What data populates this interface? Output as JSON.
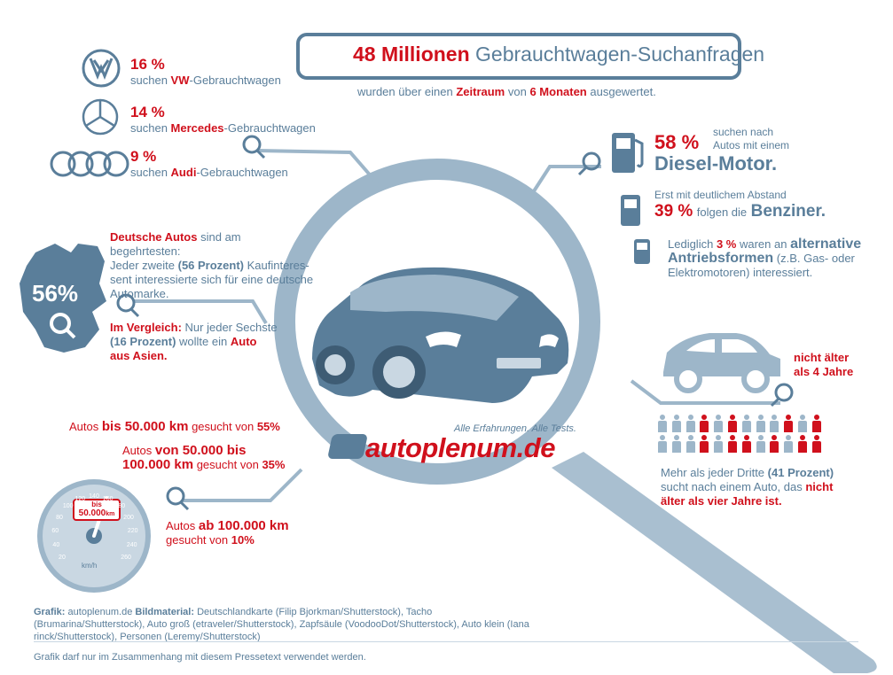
{
  "header": {
    "title_number": "48 Millionen",
    "title_rest": "Gebrauchtwagen-Suchanfragen",
    "subtitle_pre": "wurden über einen",
    "subtitle_b1": "Zeitraum",
    "subtitle_mid": "von",
    "subtitle_b2": "6 Monaten",
    "subtitle_post": "ausgewertet."
  },
  "brands": [
    {
      "percent": "16 %",
      "pre": "suchen",
      "name": "VW",
      "post": "-Gebrauchtwagen",
      "logo": "vw-logo"
    },
    {
      "percent": "14 %",
      "pre": "suchen",
      "name": "Mercedes",
      "post": "-Gebrauchtwagen",
      "logo": "mercedes-logo"
    },
    {
      "percent": "9 %",
      "pre": "suchen",
      "name": "Audi",
      "post": "-Gebrauchtwagen",
      "logo": "audi-logo"
    }
  ],
  "germany": {
    "percent": "56%",
    "p1_red": "Deutsche Autos",
    "p1_rest": "sind am begehrtesten:",
    "p1_line2_pre": "Jeder zweite",
    "p1_line2_bold": "(56 Prozent)",
    "p1_line2_post": "Kaufinteres-",
    "p1_line3": "sent interessierte sich für eine deutsche",
    "p1_line4": "Automarke.",
    "p2_red": "Im Vergleich:",
    "p2_rest": "Nur jeder Sechste",
    "p2_line2_bold": "(16 Prozent)",
    "p2_line2_post": "wollte ein",
    "p2_line2_red": "Auto",
    "p2_line3_red": "aus Asien."
  },
  "fuel": {
    "diesel_percent": "58 %",
    "diesel_text1": "suchen nach",
    "diesel_text2": "Autos mit einem",
    "diesel_big": "Diesel-Motor.",
    "benzin_text1": "Erst mit deutlichem Abstand",
    "benzin_percent": "39 %",
    "benzin_mid": "folgen die",
    "benzin_big": "Benziner.",
    "alt_pre": "Lediglich",
    "alt_percent": "3 %",
    "alt_mid": "waren an",
    "alt_big1": "alternative",
    "alt_big2": "Antriebsformen",
    "alt_rest1": "(z.B. Gas- oder",
    "alt_rest2": "Elektromotoren) interessiert."
  },
  "age": {
    "label1": "nicht älter",
    "label2": "als 4 Jahre",
    "text1_pre": "Mehr als jeder Dritte",
    "text1_bold": "(41 Prozent)",
    "text2_pre": "sucht nach einem Auto, das",
    "text2_red": "nicht",
    "text3_red": "älter als vier Jahre ist.",
    "people_highlighted": 0.41
  },
  "mileage": {
    "m1_pre": "Autos",
    "m1_bold": "bis 50.000 km",
    "m1_post": "gesucht von",
    "m1_value": "55%",
    "m2_pre": "Autos",
    "m2_bold1": "von 50.000 bis",
    "m2_bold2": "100.000 km",
    "m2_post": "gesucht von",
    "m2_value": "35%",
    "m3_pre": "Autos",
    "m3_bold": "ab 100.000 km",
    "m3_post": "gesucht von",
    "m3_value": "10%",
    "gauge_badge1": "bis",
    "gauge_badge2": "50.000",
    "gauge_badge_unit": "km",
    "gauge_unit": "km/h",
    "gauge_ticks": [
      "20",
      "40",
      "60",
      "80",
      "100",
      "120",
      "140",
      "160",
      "180",
      "200",
      "220",
      "240",
      "260"
    ]
  },
  "brand_logo": {
    "slogan": "Alle Erfahrungen. Alle Tests.",
    "name": "autoplenum.de"
  },
  "footer": {
    "credit_label1": "Grafik:",
    "credit_val1": "autoplenum.de",
    "credit_label2": "Bildmaterial:",
    "credit_line1": "Deutschlandkarte (Filip Bjorkman/Shutterstock), Tacho (Brumarina/Shutterstock), Auto groß",
    "credit_line2": "(etraveler/Shutterstock), Zapfsäule (VoodooDot/Shutterstock), Auto klein (Iana rinck/Shutterstock), Personen (Leremy/Shutterstock)",
    "notice": "Grafik darf nur im Zusammenhang mit diesem Pressetext verwendet werden."
  },
  "colors": {
    "accent_red": "#d0101c",
    "steel_blue": "#5a7e9a",
    "light_blue": "#9db6c9"
  }
}
